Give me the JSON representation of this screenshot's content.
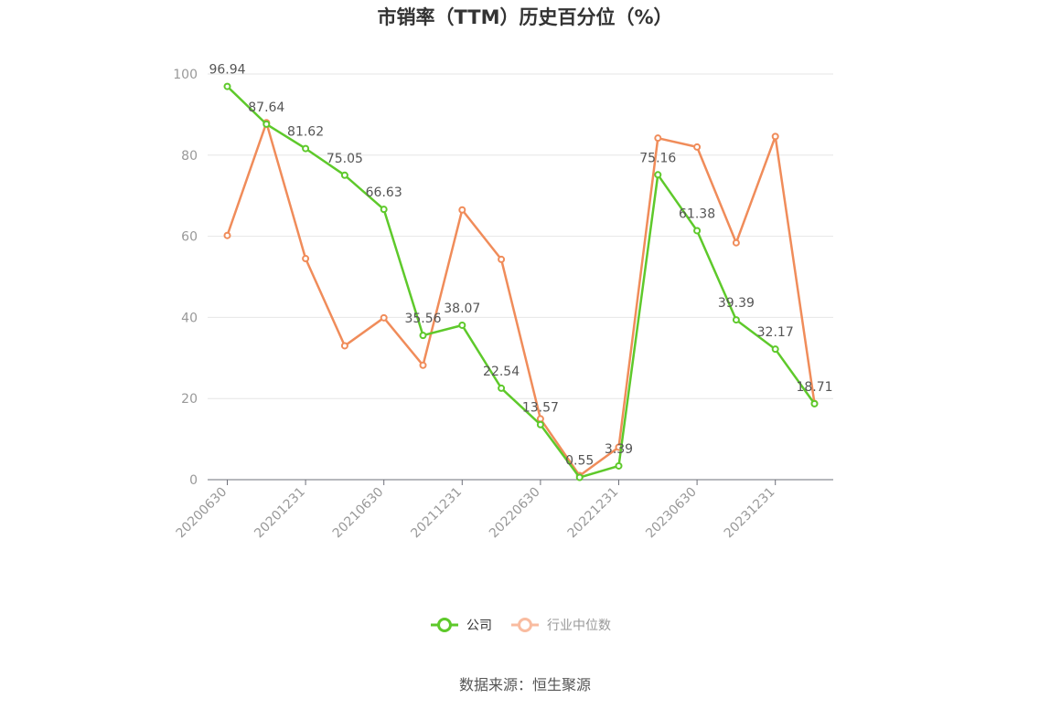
{
  "chart_data": {
    "type": "line",
    "title": "市销率（TTM）历史百分位（%）",
    "x": [
      "20200630",
      "20200930",
      "20201231",
      "20210331",
      "20210630",
      "20210930",
      "20211231",
      "20220331",
      "20220630",
      "20220930",
      "20221231",
      "20230331",
      "20230630",
      "20230930",
      "20231231",
      "20240331"
    ],
    "x_tick_labels": [
      "20200630",
      "20201231",
      "20210630",
      "20211231",
      "20220630",
      "20221231",
      "20230630",
      "20231231"
    ],
    "yticks": [
      "0",
      "20",
      "40",
      "60",
      "80",
      "100"
    ],
    "ylim": [
      0,
      100
    ],
    "grid": true,
    "legend_position": "bottom",
    "series": [
      {
        "name": "公司",
        "color": "#5ec92b",
        "values": [
          96.94,
          87.64,
          81.62,
          75.05,
          66.63,
          35.56,
          38.07,
          22.54,
          13.57,
          0.55,
          3.39,
          75.16,
          61.38,
          39.39,
          32.17,
          18.71
        ],
        "labels": [
          "96.94",
          "87.64",
          "81.62",
          "75.05",
          "66.63",
          "35.56",
          "38.07",
          "22.54",
          "13.57",
          "0.55",
          "3.39",
          "75.16",
          "61.38",
          "39.39",
          "32.17",
          "18.71"
        ]
      },
      {
        "name": "行业中位数",
        "color": "#f08c5a",
        "values": [
          60.2,
          88.0,
          54.5,
          33.0,
          39.9,
          28.2,
          66.5,
          54.3,
          15.0,
          1.0,
          8.0,
          84.2,
          82.0,
          58.4,
          84.6,
          18.8
        ]
      }
    ]
  },
  "legend": [
    {
      "label": "公司",
      "color": "#5ec92b",
      "text_color": "#333333"
    },
    {
      "label": "行业中位数",
      "color": "#f9bca0",
      "text_color": "#999999"
    }
  ],
  "source": "数据来源：恒生聚源"
}
